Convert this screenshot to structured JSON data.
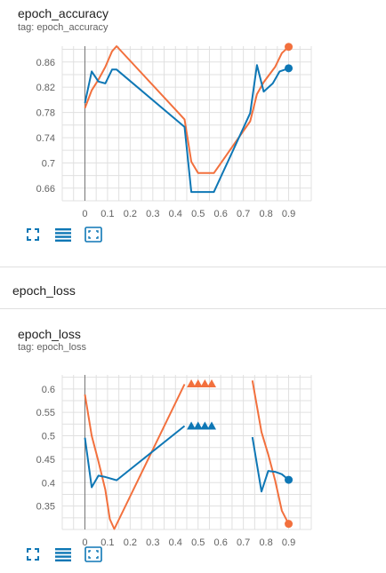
{
  "charts": [
    {
      "title": "epoch_accuracy",
      "tag": "tag: epoch_accuracy"
    },
    {
      "title": "epoch_loss",
      "tag": "tag: epoch_loss"
    }
  ],
  "section": {
    "title": "epoch_loss"
  },
  "toolbar_icons": [
    "fullscreen-icon",
    "data-table-icon",
    "fit-domain-icon"
  ],
  "colors": {
    "train": "#f2703d",
    "validation": "#0e77b5",
    "grid": "#e0e0e0",
    "axis_text": "#616161"
  },
  "chart_data": [
    {
      "type": "line",
      "title": "epoch_accuracy",
      "x_ticks": [
        0,
        0.1,
        0.2,
        0.3,
        0.4,
        0.5,
        0.6,
        0.7,
        0.8,
        0.9
      ],
      "x_tick_labels": [
        "0",
        "0.1",
        "0.2",
        "0.3",
        "0.4",
        "0.5",
        "0.6",
        "0.7",
        "0.8",
        "0.9"
      ],
      "y_ticks": [
        0.66,
        0.7,
        0.74,
        0.78,
        0.82,
        0.86
      ],
      "y_tick_labels": [
        "0.66",
        "0.7",
        "0.74",
        "0.78",
        "0.82",
        "0.86"
      ],
      "xlim": [
        -0.1,
        1.0
      ],
      "ylim": [
        0.64,
        0.885
      ],
      "grid": true,
      "series": [
        {
          "color": "#f2703d",
          "end_marker": "circle",
          "points": [
            [
              0,
              0.787
            ],
            [
              0.03,
              0.815
            ],
            [
              0.06,
              0.832
            ],
            [
              0.09,
              0.852
            ],
            [
              0.12,
              0.877
            ],
            [
              0.14,
              0.885
            ],
            [
              0.44,
              0.769
            ],
            [
              0.47,
              0.702
            ],
            [
              0.5,
              0.684
            ],
            [
              0.57,
              0.684
            ],
            [
              0.73,
              0.766
            ],
            [
              0.76,
              0.809
            ],
            [
              0.79,
              0.828
            ],
            [
              0.84,
              0.852
            ],
            [
              0.87,
              0.874
            ],
            [
              0.9,
              0.884
            ]
          ]
        },
        {
          "color": "#0e77b5",
          "end_marker": "circle",
          "points": [
            [
              0,
              0.795
            ],
            [
              0.03,
              0.845
            ],
            [
              0.06,
              0.829
            ],
            [
              0.09,
              0.826
            ],
            [
              0.12,
              0.848
            ],
            [
              0.14,
              0.848
            ],
            [
              0.44,
              0.757
            ],
            [
              0.47,
              0.654
            ],
            [
              0.57,
              0.654
            ],
            [
              0.73,
              0.779
            ],
            [
              0.76,
              0.855
            ],
            [
              0.79,
              0.813
            ],
            [
              0.83,
              0.826
            ],
            [
              0.86,
              0.845
            ],
            [
              0.9,
              0.85
            ]
          ]
        }
      ]
    },
    {
      "type": "line",
      "title": "epoch_loss",
      "x_ticks": [
        0,
        0.1,
        0.2,
        0.3,
        0.4,
        0.5,
        0.6,
        0.7,
        0.8,
        0.9
      ],
      "x_tick_labels": [
        "0",
        "0.1",
        "0.2",
        "0.3",
        "0.4",
        "0.5",
        "0.6",
        "0.7",
        "0.8",
        "0.9"
      ],
      "y_ticks": [
        0.35,
        0.4,
        0.45,
        0.5,
        0.55,
        0.6
      ],
      "y_tick_labels": [
        "0.35",
        "0.4",
        "0.45",
        "0.5",
        "0.55",
        "0.6"
      ],
      "xlim": [
        -0.1,
        1.0
      ],
      "ylim": [
        0.3,
        0.63
      ],
      "grid": true,
      "series": [
        {
          "color": "#f2703d",
          "segments": [
            [
              [
                0,
                0.588
              ],
              [
                0.03,
                0.5
              ],
              [
                0.06,
                0.445
              ],
              [
                0.09,
                0.385
              ],
              [
                0.11,
                0.322
              ],
              [
                0.13,
                0.301
              ],
              [
                0.44,
                0.61
              ]
            ],
            [
              [
                0.74,
                0.618
              ],
              [
                0.78,
                0.508
              ],
              [
                0.81,
                0.46
              ],
              [
                0.84,
                0.405
              ],
              [
                0.87,
                0.34
              ],
              [
                0.9,
                0.312
              ]
            ]
          ],
          "marker_points": [
            [
              0.47,
              0.611
            ],
            [
              0.5,
              0.611
            ],
            [
              0.53,
              0.611
            ],
            [
              0.56,
              0.611
            ]
          ],
          "end_point": [
            0.9,
            0.312
          ]
        },
        {
          "color": "#0e77b5",
          "segments": [
            [
              [
                0,
                0.496
              ],
              [
                0.03,
                0.39
              ],
              [
                0.06,
                0.415
              ],
              [
                0.09,
                0.412
              ],
              [
                0.14,
                0.405
              ],
              [
                0.44,
                0.521
              ]
            ],
            [
              [
                0.74,
                0.497
              ],
              [
                0.78,
                0.381
              ],
              [
                0.81,
                0.425
              ],
              [
                0.84,
                0.423
              ],
              [
                0.87,
                0.418
              ],
              [
                0.9,
                0.406
              ]
            ]
          ],
          "marker_points": [
            [
              0.47,
              0.521
            ],
            [
              0.5,
              0.521
            ],
            [
              0.53,
              0.521
            ],
            [
              0.56,
              0.521
            ]
          ],
          "end_point": [
            0.9,
            0.406
          ]
        }
      ]
    }
  ]
}
